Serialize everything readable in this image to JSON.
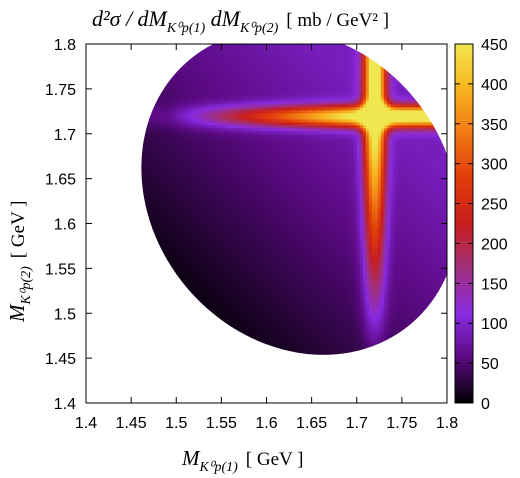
{
  "chart_data": {
    "type": "heatmap",
    "title": {
      "main": "d²σ / dM",
      "sub1": "K⁰p(1)",
      "mid": " dM",
      "sub2": "K⁰p(2)",
      "unit": "[ mb / GeV² ]"
    },
    "xlabel": {
      "main": "M",
      "sub": "K⁰p(1)",
      "unit": "[ GeV ]"
    },
    "ylabel": {
      "main": "M",
      "sub": "K⁰p(2)",
      "unit": "[ GeV ]"
    },
    "xlim": [
      1.4,
      1.8
    ],
    "ylim": [
      1.4,
      1.8
    ],
    "x_ticks": [
      "1.4",
      "1.45",
      "1.5",
      "1.55",
      "1.6",
      "1.65",
      "1.7",
      "1.75",
      "1.8"
    ],
    "y_ticks": [
      "1.4",
      "1.45",
      "1.5",
      "1.55",
      "1.6",
      "1.65",
      "1.7",
      "1.75",
      "1.8"
    ],
    "colorbar": {
      "range": [
        0,
        450
      ],
      "ticks": [
        "0",
        "50",
        "100",
        "150",
        "200",
        "250",
        "300",
        "350",
        "400",
        "450"
      ],
      "colormap": [
        "#000000",
        "#5a0a82",
        "#8a2be2",
        "#a0307a",
        "#c81e1e",
        "#e03c0a",
        "#f07814",
        "#f8b41e",
        "#f0e650"
      ]
    },
    "dalitz_boundary": {
      "shape": "ellipse",
      "center": [
        1.637,
        1.635
      ],
      "semi_axes": [
        0.164,
        0.192
      ],
      "rotation_deg": -40
    },
    "bands": [
      {
        "axis": "x",
        "center": 1.72,
        "peak": 450
      },
      {
        "axis": "y",
        "center": 1.72,
        "peak": 450
      }
    ],
    "background_gradient": {
      "low": 0,
      "high": 90
    },
    "grid": false,
    "legend": "right"
  }
}
